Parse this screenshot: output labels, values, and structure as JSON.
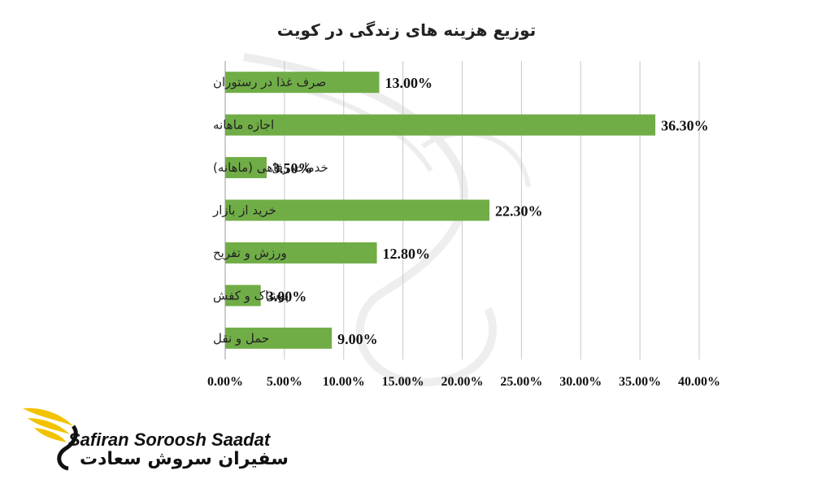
{
  "colors": {
    "bar": "#70ad47",
    "logo_accent": "#f2c200",
    "watermark": "#ededed"
  },
  "chart_data": {
    "type": "bar",
    "orientation": "horizontal",
    "title": "توزیع هزینه های زندگی در کویت",
    "categories": [
      "صرف غذا در رستوران",
      "اجازه ماهانه",
      "خدمات رفاهی (ماهانه)",
      "خرید از بازار",
      "ورزش و تفریح",
      "پوشاک و کفش",
      "حمل و نقل"
    ],
    "values": [
      13.0,
      36.3,
      3.5,
      22.3,
      12.8,
      3.0,
      9.0
    ],
    "data_labels": [
      "13.00%",
      "36.30%",
      "3.50%",
      "22.30%",
      "12.80%",
      "3.00%",
      "9.00%"
    ],
    "xlim": [
      0,
      40
    ],
    "xticks": [
      0,
      5,
      10,
      15,
      20,
      25,
      30,
      35,
      40
    ],
    "xtick_labels": [
      "0.00%",
      "5.00%",
      "10.00%",
      "15.00%",
      "20.00%",
      "25.00%",
      "30.00%",
      "35.00%",
      "40.00%"
    ],
    "xlabel": "",
    "ylabel": "",
    "grid": true,
    "legend": "none"
  },
  "logo": {
    "name_en": "Safiran Soroosh Saadat",
    "name_fa": "سفیران سروش سعادت",
    "icon": "winged-s-logo-icon"
  }
}
